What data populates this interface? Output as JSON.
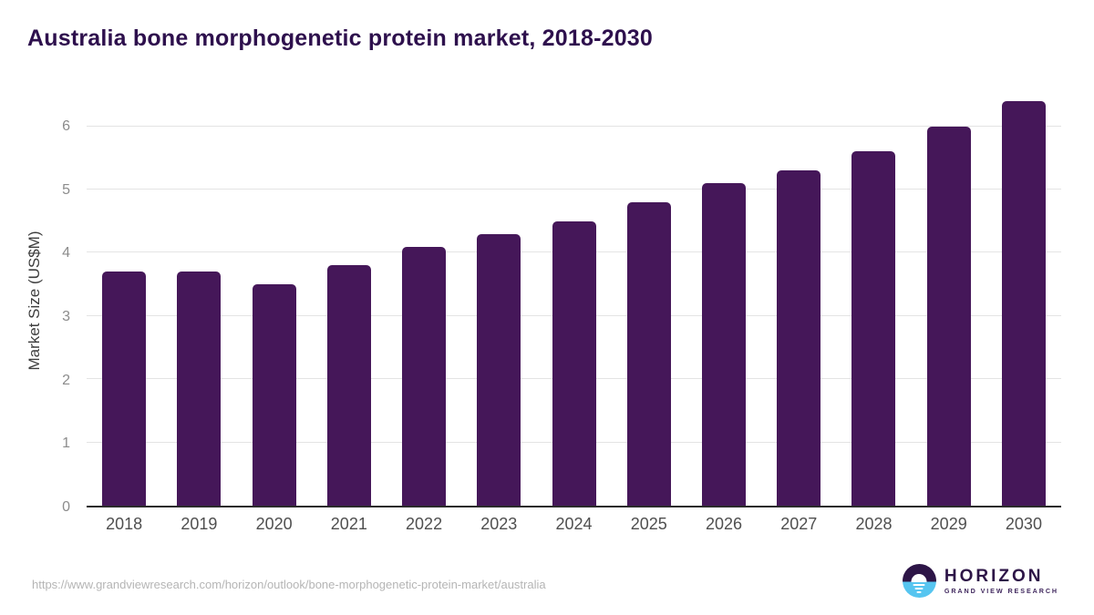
{
  "title": "Australia bone morphogenetic protein market, 2018-2030",
  "footer": {
    "source_url": "https://www.grandviewresearch.com/horizon/outlook/bone-morphogenetic-protein-market/australia",
    "logo": {
      "name": "HORIZON",
      "subtitle": "GRAND VIEW RESEARCH"
    }
  },
  "colors": {
    "bar": "#451759",
    "title_text": "#2e104d",
    "axis_line": "#2b2b2b",
    "gridline": "#e4e4e4",
    "y_tick_label": "#8c8c8c",
    "x_tick_label": "#4f4f4f",
    "url_text": "#b5b5b5",
    "logo_purple": "#2d1547",
    "logo_blue": "#56c5f0"
  },
  "chart_data": {
    "type": "bar",
    "title": "Australia bone morphogenetic protein market, 2018-2030",
    "categories": [
      "2018",
      "2019",
      "2020",
      "2021",
      "2022",
      "2023",
      "2024",
      "2025",
      "2026",
      "2027",
      "2028",
      "2029",
      "2030"
    ],
    "values": [
      3.7,
      3.7,
      3.5,
      3.8,
      4.1,
      4.3,
      4.5,
      4.8,
      5.1,
      5.3,
      5.6,
      6.0,
      6.4
    ],
    "xlabel": "",
    "ylabel": "Market Size (US$M)",
    "yticks": [
      0,
      1,
      2,
      3,
      4,
      5,
      6
    ],
    "ylim": [
      0,
      6.5
    ],
    "grid": "horizontal",
    "legend": "none",
    "bar_color": "#451759"
  }
}
